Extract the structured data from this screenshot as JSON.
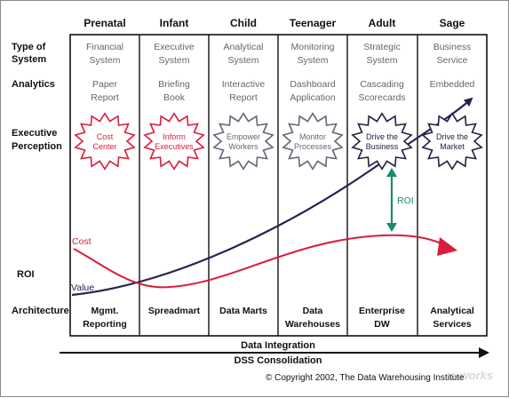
{
  "stages": [
    "Prenatal",
    "Infant",
    "Child",
    "Teenager",
    "Adult",
    "Sage"
  ],
  "row_labels": {
    "type_of_system": [
      "Type of",
      "System"
    ],
    "analytics": "Analytics",
    "executive_perception": [
      "Executive",
      "Perception"
    ],
    "roi": "ROI",
    "architecture": "Architecture"
  },
  "type_of_system": [
    [
      "Financial",
      "System"
    ],
    [
      "Executive",
      "System"
    ],
    [
      "Analytical",
      "System"
    ],
    [
      "Monitoring",
      "System"
    ],
    [
      "Strategic",
      "System"
    ],
    [
      "Business",
      "Service"
    ]
  ],
  "analytics": [
    [
      "Paper",
      "Report"
    ],
    [
      "Briefing",
      "Book"
    ],
    [
      "Interactive",
      "Report"
    ],
    [
      "Dashboard",
      "Application"
    ],
    [
      "Cascading",
      "Scorecards"
    ],
    [
      "Embedded"
    ]
  ],
  "executive_perception": [
    [
      "Cost",
      "Center"
    ],
    [
      "Inform",
      "Executives"
    ],
    [
      "Empower",
      "Workers"
    ],
    [
      "Monitor",
      "Processes"
    ],
    [
      "Drive the",
      "Business"
    ],
    [
      "Drive the",
      "Market"
    ]
  ],
  "architecture": [
    [
      "Mgmt.",
      "Reporting"
    ],
    [
      "Spreadmart"
    ],
    [
      "Data Marts"
    ],
    [
      "Data",
      "Warehouses"
    ],
    [
      "Enterprise",
      "DW"
    ],
    [
      "Analytical",
      "Services"
    ]
  ],
  "curves": {
    "cost_label": "Cost",
    "value_label": "Value",
    "roi_label": "ROI"
  },
  "bottom_axis": [
    "Data Integration",
    "DSS Consolidation"
  ],
  "copyright": "© Copyright 2002, The Data Warehousing Institute",
  "watermark": "e-works",
  "colors": {
    "cost": "#d81e3c",
    "value": "#2a2350",
    "roi": "#1b8a70",
    "early_burst": "#d81e3c",
    "mid_burst": "#666677",
    "late_burst": "#222244"
  }
}
